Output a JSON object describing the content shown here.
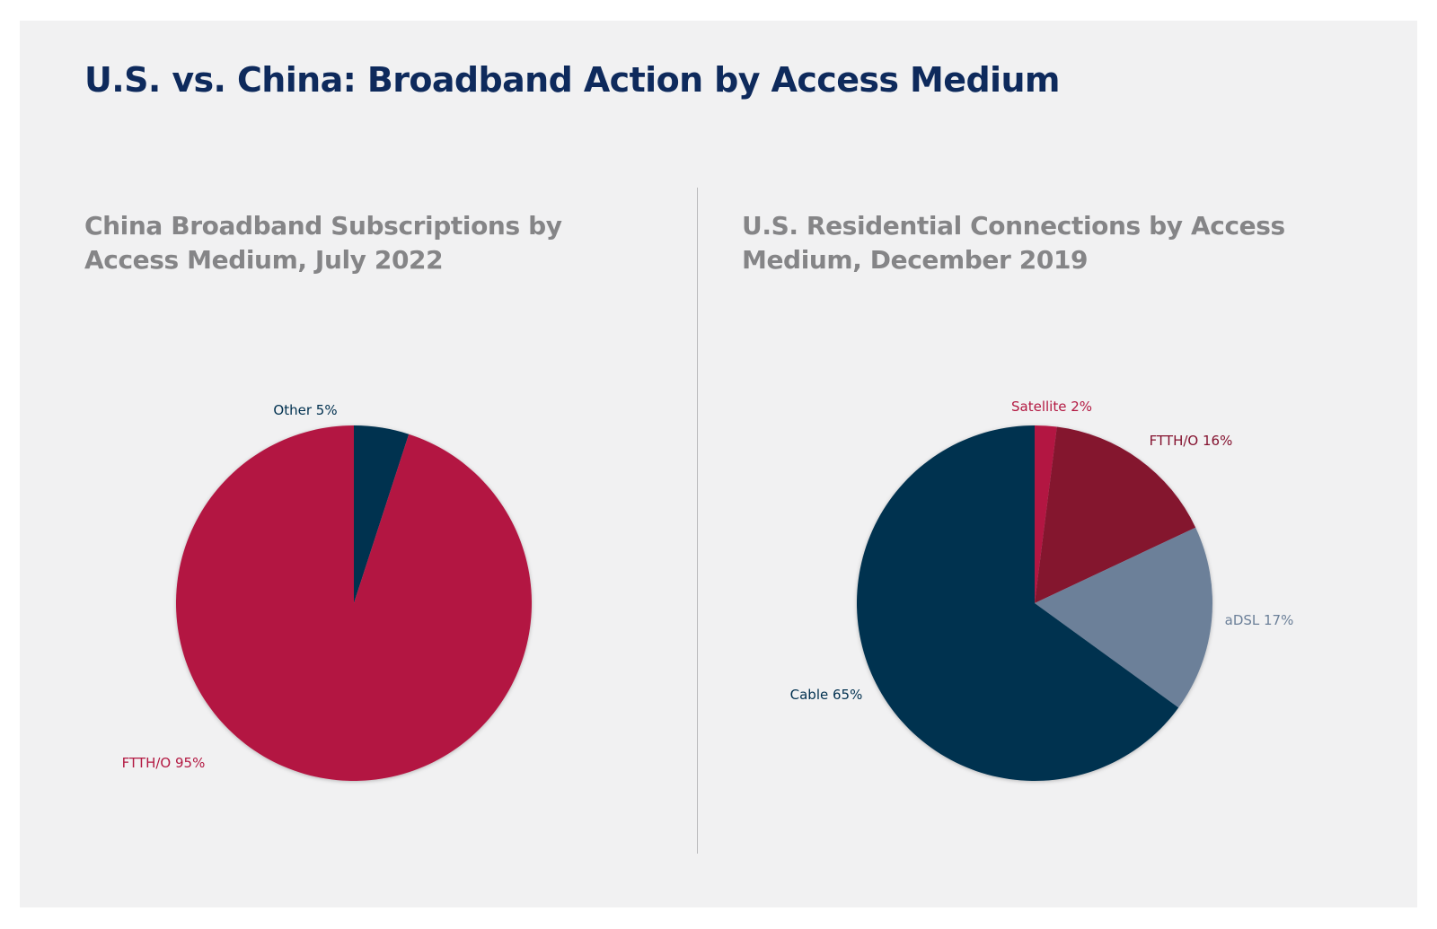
{
  "header": {
    "title": "U.S. vs. China: Broadband Action by Access Medium"
  },
  "colors": {
    "background": "#f1f1f2",
    "title": "#0e2a5c",
    "subtitle": "#858587",
    "crimson": "#b31942",
    "navy": "#00304f",
    "maroon": "#84122f",
    "slate": "#6c8099"
  },
  "chart_data": [
    {
      "type": "pie",
      "title_lines": [
        "China Broadband Subscriptions by",
        "Access Medium, July 2022"
      ],
      "slices": [
        {
          "label": "Other",
          "value": 5,
          "display": "Other 5%",
          "color": "#00304f",
          "label_color": "#00304f"
        },
        {
          "label": "FTTH/O",
          "value": 95,
          "display": "FTTH/O 95%",
          "color": "#b31942",
          "label_color": "#b31942"
        }
      ]
    },
    {
      "type": "pie",
      "title_lines": [
        "U.S. Residential Connections by Access",
        "Medium, December 2019"
      ],
      "slices": [
        {
          "label": "Satellite",
          "value": 2,
          "display": "Satellite 2%",
          "color": "#b31942",
          "label_color": "#b31942"
        },
        {
          "label": "FTTH/O",
          "value": 16,
          "display": "FTTH/O 16%",
          "color": "#84122f",
          "label_color": "#84122f"
        },
        {
          "label": "aDSL",
          "value": 17,
          "display": "aDSL 17%",
          "color": "#6c8099",
          "label_color": "#6c8099"
        },
        {
          "label": "Cable",
          "value": 65,
          "display": "Cable 65%",
          "color": "#00304f",
          "label_color": "#00304f"
        }
      ]
    }
  ]
}
